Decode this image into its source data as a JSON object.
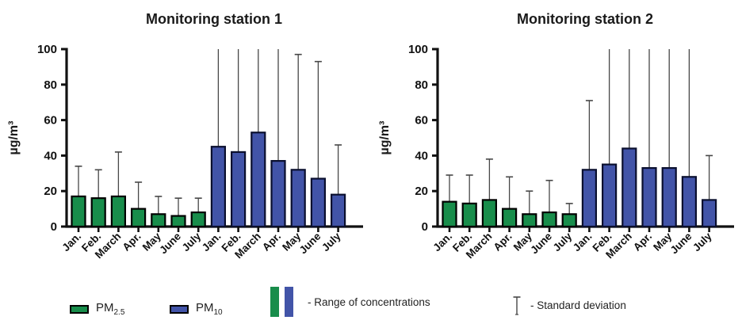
{
  "colors": {
    "pm25_fill": "#188d4b",
    "pm25_border": "#000000",
    "pm10_fill": "#4254a8",
    "pm10_border": "#0a0f2e",
    "error_bar": "#474747",
    "axis": "#111111"
  },
  "chart_data": [
    {
      "type": "bar",
      "title": "Monitoring station 1",
      "ylabel": "µg/m³",
      "ylim": [
        0,
        100
      ],
      "yticks": [
        0,
        20,
        40,
        60,
        80,
        100
      ],
      "grid": false,
      "categories": [
        "Jan.",
        "Feb.",
        "March",
        "Apr.",
        "May",
        "June",
        "July"
      ],
      "series": [
        {
          "name": "PM2.5",
          "color": "#188d4b",
          "values": [
            17,
            16,
            17,
            10,
            7,
            6,
            8
          ],
          "sd_top": [
            34,
            32,
            42,
            25,
            17,
            16,
            16
          ]
        },
        {
          "name": "PM10",
          "color": "#4254a8",
          "values": [
            45,
            42,
            53,
            37,
            32,
            27,
            18
          ],
          "sd_top": [
            100,
            100,
            100,
            100,
            97,
            93,
            46
          ]
        }
      ]
    },
    {
      "type": "bar",
      "title": "Monitoring station 2",
      "ylabel": "µg/m³",
      "ylim": [
        0,
        100
      ],
      "yticks": [
        0,
        20,
        40,
        60,
        80,
        100
      ],
      "grid": false,
      "categories": [
        "Jan.",
        "Feb.",
        "March",
        "Apr.",
        "May",
        "June",
        "July"
      ],
      "series": [
        {
          "name": "PM2.5",
          "color": "#188d4b",
          "values": [
            14,
            13,
            15,
            10,
            7,
            8,
            7
          ],
          "sd_top": [
            29,
            29,
            38,
            28,
            20,
            26,
            13
          ]
        },
        {
          "name": "PM10",
          "color": "#4254a8",
          "values": [
            32,
            35,
            44,
            33,
            33,
            28,
            15
          ],
          "sd_top": [
            71,
            100,
            100,
            100,
            100,
            100,
            40
          ]
        }
      ]
    }
  ],
  "legend": {
    "pm25": {
      "base": "PM",
      "sub": "2.5"
    },
    "pm10": {
      "base": "PM",
      "sub": "10"
    },
    "range_label": "- Range of concentrations",
    "sd_label": "- Standard deviation"
  }
}
